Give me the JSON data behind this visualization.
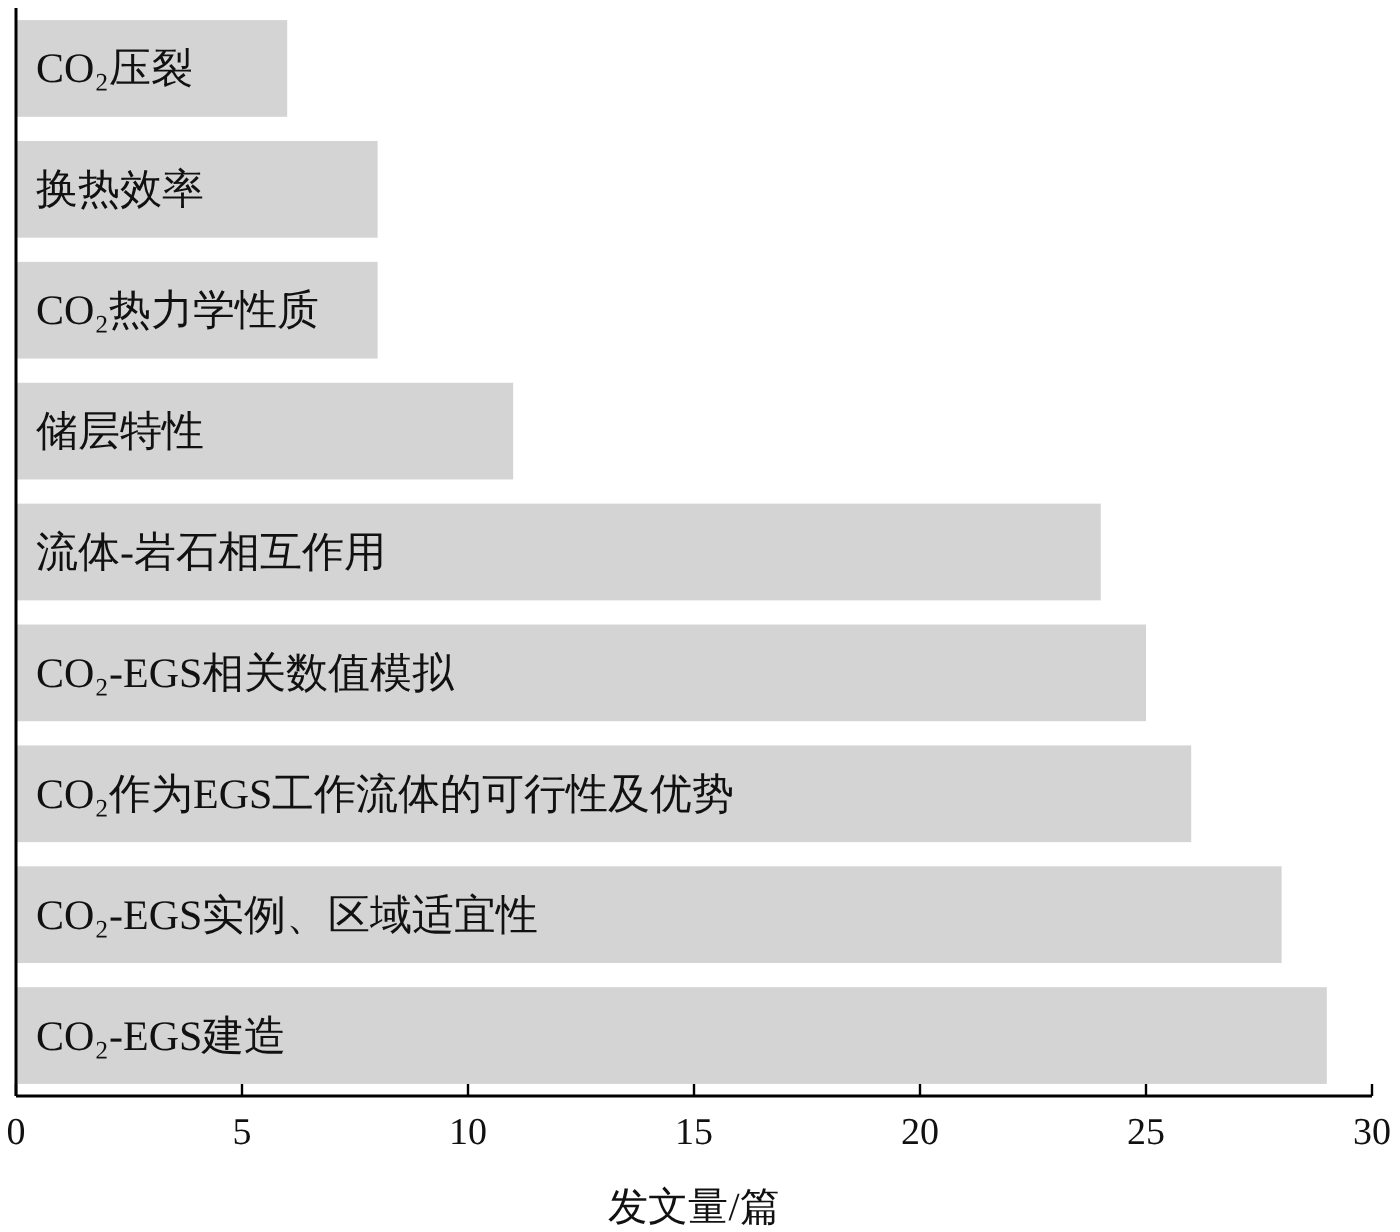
{
  "chart_data": {
    "type": "bar",
    "orientation": "horizontal",
    "categories": [
      "CO₂压裂",
      "换热效率",
      "CO₂热力学性质",
      "储层特性",
      "流体-岩石相互作用",
      "CO₂-EGS相关数值模拟",
      "CO₂作为EGS工作流体的可行性及优势",
      "CO₂-EGS实例、区域适宜性",
      "CO₂-EGS建造"
    ],
    "values": [
      6,
      8,
      8,
      11,
      24,
      25,
      26,
      28,
      29
    ],
    "color": "#d4d4d4",
    "xlim": [
      0,
      30
    ],
    "xticks": [
      0,
      5,
      10,
      15,
      20,
      25,
      30
    ],
    "xlabel": "发文量/篇"
  }
}
